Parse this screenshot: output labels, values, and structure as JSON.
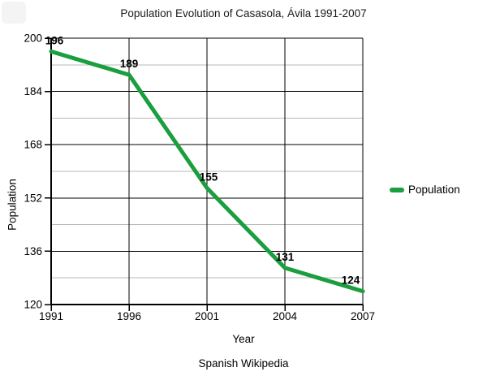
{
  "chart_data": {
    "type": "line",
    "title": "Population Evolution of Casasola, Ávila 1991-2007",
    "categories": [
      "1991",
      "1996",
      "2001",
      "2004",
      "2007"
    ],
    "series": [
      {
        "name": "Population",
        "color": "#1b9e3e",
        "values": [
          196,
          189,
          155,
          131,
          124
        ]
      }
    ],
    "xlabel": "Year",
    "ylabel": "Population",
    "ylim": [
      120,
      200
    ],
    "y_ticks": [
      200,
      184,
      168,
      152,
      136,
      120
    ],
    "y_minor_step": 8,
    "x_axis_type": "categorical-even-spacing",
    "grid": true,
    "point_labels": true,
    "legend_position": "right-middle",
    "caption": "Spanish Wikipedia"
  },
  "colors": {
    "line": "#1b9e3e",
    "major_grid": "#000000",
    "minor_grid": "#b8b8b8",
    "text": "#000000"
  }
}
